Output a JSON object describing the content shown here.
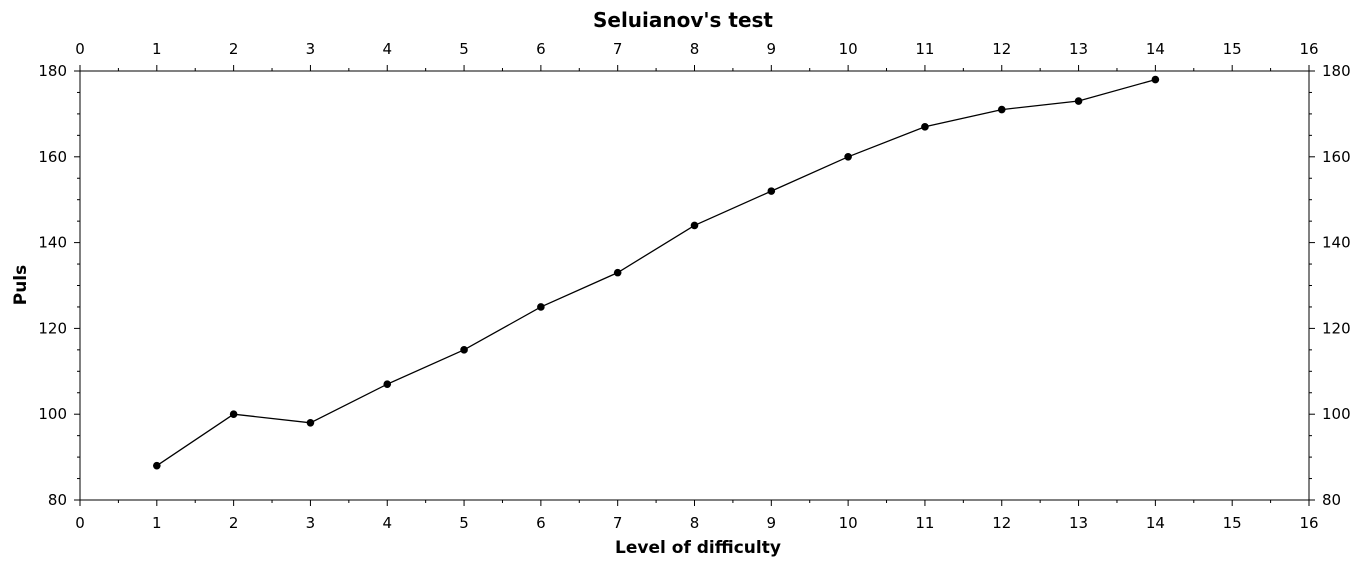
{
  "chart_data": {
    "type": "line",
    "title": "Seluianov's test",
    "xlabel": "Level of difficulty",
    "ylabel": "Puls",
    "xlim": [
      0,
      16
    ],
    "ylim": [
      80,
      180
    ],
    "xticks": [
      0,
      1,
      2,
      3,
      4,
      5,
      6,
      7,
      8,
      9,
      10,
      11,
      12,
      13,
      14,
      15,
      16
    ],
    "yticks": [
      80,
      100,
      120,
      140,
      160,
      180
    ],
    "grid": false,
    "x": [
      1,
      2,
      3,
      4,
      5,
      6,
      7,
      8,
      9,
      10,
      11,
      12,
      13,
      14
    ],
    "y": [
      88,
      100,
      98,
      107,
      115,
      125,
      133,
      144,
      152,
      160,
      167,
      171,
      173,
      178
    ],
    "line_color": "#000000",
    "marker_color": "#000000"
  }
}
